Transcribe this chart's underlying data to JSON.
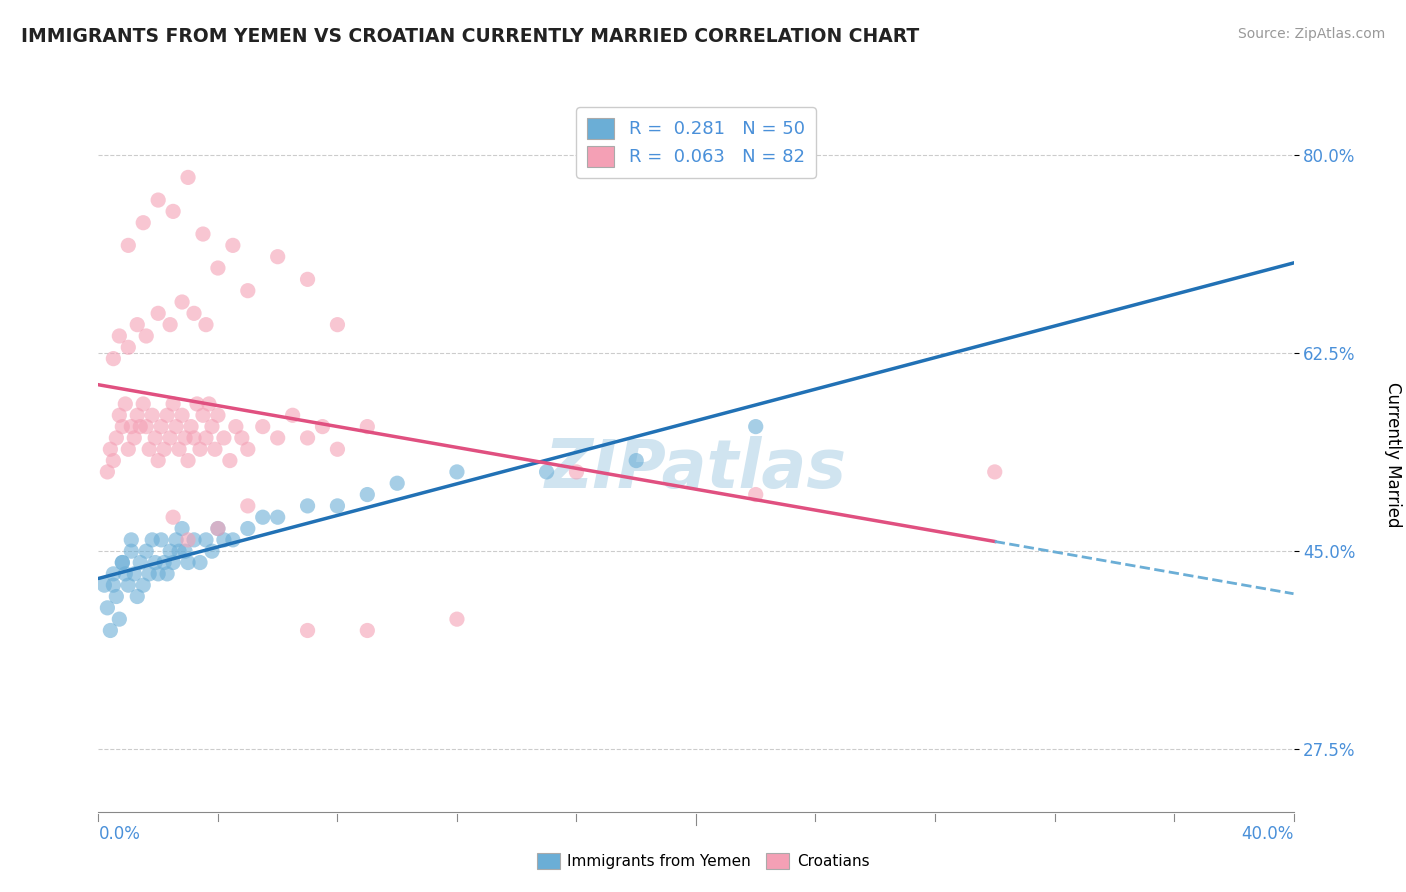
{
  "title": "IMMIGRANTS FROM YEMEN VS CROATIAN CURRENTLY MARRIED CORRELATION CHART",
  "source_text": "Source: ZipAtlas.com",
  "legend_label_1": "Immigrants from Yemen",
  "legend_label_2": "Croatians",
  "R1": 0.281,
  "N1": 50,
  "R2": 0.063,
  "N2": 82,
  "blue_color": "#6baed6",
  "pink_color": "#f4a0b5",
  "blue_line_color": "#2171b5",
  "pink_line_color": "#e05080",
  "watermark_color": "#d0e4f0",
  "xmin": 0.0,
  "xmax": 40.0,
  "ymin": 22.0,
  "ymax": 85.0,
  "yticks": [
    27.5,
    45.0,
    62.5,
    80.0
  ],
  "blue_scatter_x": [
    0.2,
    0.3,
    0.4,
    0.5,
    0.6,
    0.7,
    0.8,
    0.9,
    1.0,
    1.1,
    1.2,
    1.3,
    1.4,
    1.5,
    1.6,
    1.7,
    1.8,
    1.9,
    2.0,
    2.1,
    2.2,
    2.3,
    2.4,
    2.5,
    2.6,
    2.7,
    2.8,
    2.9,
    3.0,
    3.2,
    3.4,
    3.6,
    3.8,
    4.0,
    4.2,
    4.5,
    5.0,
    5.5,
    6.0,
    7.0,
    8.0,
    9.0,
    10.0,
    12.0,
    15.0,
    18.0,
    22.0,
    0.5,
    0.8,
    1.1
  ],
  "blue_scatter_y": [
    42,
    40,
    38,
    43,
    41,
    39,
    44,
    43,
    42,
    45,
    43,
    41,
    44,
    42,
    45,
    43,
    46,
    44,
    43,
    46,
    44,
    43,
    45,
    44,
    46,
    45,
    47,
    45,
    44,
    46,
    44,
    46,
    45,
    47,
    46,
    46,
    47,
    48,
    48,
    49,
    49,
    50,
    51,
    52,
    52,
    53,
    56,
    42,
    44,
    46
  ],
  "pink_scatter_x": [
    0.3,
    0.4,
    0.5,
    0.6,
    0.7,
    0.8,
    0.9,
    1.0,
    1.1,
    1.2,
    1.3,
    1.4,
    1.5,
    1.6,
    1.7,
    1.8,
    1.9,
    2.0,
    2.1,
    2.2,
    2.3,
    2.4,
    2.5,
    2.6,
    2.7,
    2.8,
    2.9,
    3.0,
    3.1,
    3.2,
    3.3,
    3.4,
    3.5,
    3.6,
    3.7,
    3.8,
    3.9,
    4.0,
    4.2,
    4.4,
    4.6,
    4.8,
    5.0,
    5.5,
    6.0,
    6.5,
    7.0,
    7.5,
    8.0,
    9.0,
    0.5,
    0.7,
    1.0,
    1.3,
    1.6,
    2.0,
    2.4,
    2.8,
    3.2,
    3.6,
    1.0,
    1.5,
    2.0,
    2.5,
    3.0,
    3.5,
    4.0,
    4.5,
    5.0,
    6.0,
    7.0,
    8.0,
    2.5,
    3.0,
    4.0,
    5.0,
    7.0,
    9.0,
    12.0,
    16.0,
    22.0,
    30.0
  ],
  "pink_scatter_y": [
    52,
    54,
    53,
    55,
    57,
    56,
    58,
    54,
    56,
    55,
    57,
    56,
    58,
    56,
    54,
    57,
    55,
    53,
    56,
    54,
    57,
    55,
    58,
    56,
    54,
    57,
    55,
    53,
    56,
    55,
    58,
    54,
    57,
    55,
    58,
    56,
    54,
    57,
    55,
    53,
    56,
    55,
    54,
    56,
    55,
    57,
    55,
    56,
    54,
    56,
    62,
    64,
    63,
    65,
    64,
    66,
    65,
    67,
    66,
    65,
    72,
    74,
    76,
    75,
    78,
    73,
    70,
    72,
    68,
    71,
    69,
    65,
    48,
    46,
    47,
    49,
    38,
    38,
    39,
    52,
    50,
    52
  ],
  "seed": 7
}
